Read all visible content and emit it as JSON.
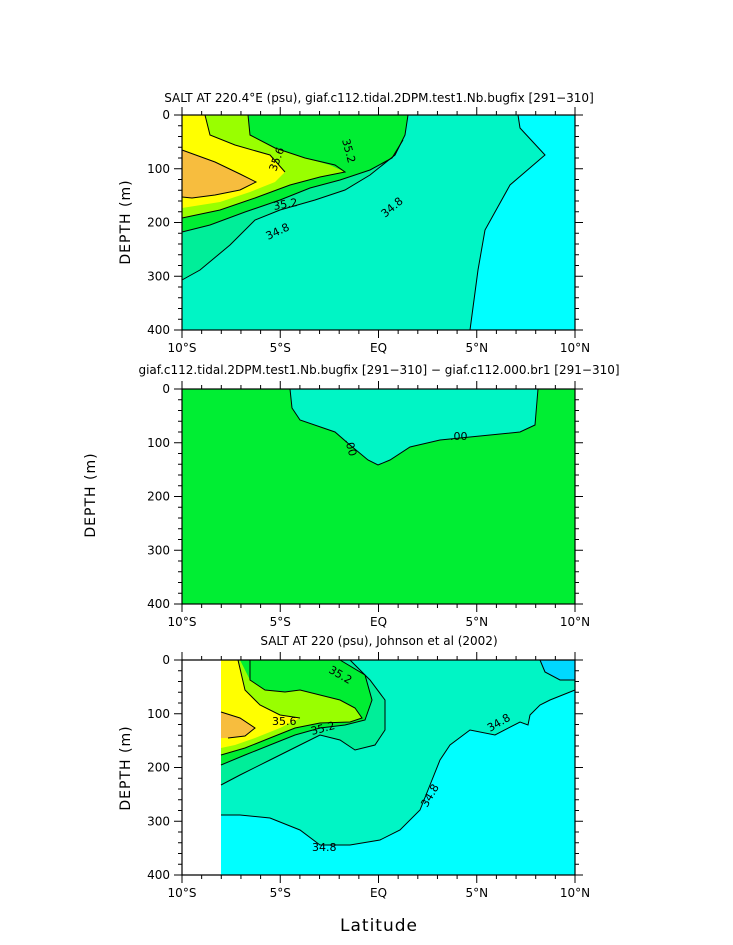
{
  "colors": {
    "cyan": "#00ffff",
    "aqua_green": "#00f5c5",
    "sea_green": "#00ee99",
    "green": "#00ee33",
    "yellow_green": "#99ff00",
    "yellow": "#ffff00",
    "orange": "#f7bd3e",
    "light_blue": "#00d8ff"
  },
  "x_axis_label": "Latitude",
  "chart_data": [
    {
      "type": "contour",
      "title": "SALT AT 220.4°E (psu), giaf.c112.tidal.2DPM.test1.Nb.bugfix [291−310]",
      "xlabel": "",
      "ylabel": "DEPTH (m)",
      "x_ticks": [
        "10°S",
        "5°S",
        "EQ",
        "5°N",
        "10°N"
      ],
      "y_ticks": [
        "0",
        "100",
        "200",
        "300",
        "400"
      ],
      "xlim": [
        -10,
        10
      ],
      "ylim": [
        400,
        0
      ],
      "contour_labels": [
        "35.2",
        "35.6",
        "35.2",
        "34.8",
        "34.8"
      ]
    },
    {
      "type": "contour",
      "title": "giaf.c112.tidal.2DPM.test1.Nb.bugfix [291−310] − giaf.c112.000.br1 [291−310]",
      "xlabel": "",
      "ylabel": "DEPTH (m)",
      "x_ticks": [
        "10°S",
        "5°S",
        "EQ",
        "5°N",
        "10°N"
      ],
      "y_ticks": [
        "0",
        "100",
        "200",
        "300",
        "400"
      ],
      "xlim": [
        -10,
        10
      ],
      "ylim": [
        400,
        0
      ],
      "contour_labels": [
        ".00",
        ".00"
      ]
    },
    {
      "type": "contour",
      "title": "SALT AT 220 (psu), Johnson et al (2002)",
      "xlabel": "Latitude",
      "ylabel": "DEPTH (m)",
      "x_ticks": [
        "10°S",
        "5°S",
        "EQ",
        "5°N",
        "10°N"
      ],
      "y_ticks": [
        "0",
        "100",
        "200",
        "300",
        "400"
      ],
      "xlim": [
        -10,
        10
      ],
      "ylim": [
        400,
        0
      ],
      "contour_labels": [
        "35.2",
        "35.6",
        "35.2",
        "34.8",
        "34.8",
        "34.8"
      ]
    }
  ]
}
